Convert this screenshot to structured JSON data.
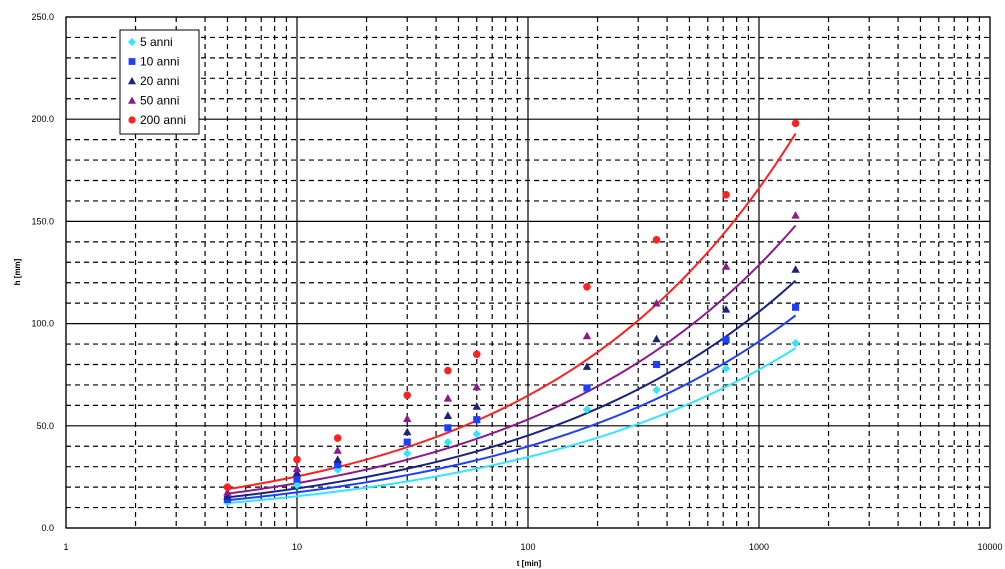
{
  "chart_data": {
    "type": "scatter",
    "title": "",
    "xlabel": "t [min]",
    "ylabel": "h [mm]",
    "xscale": "log",
    "xlim": [
      1,
      10000
    ],
    "ylim": [
      0,
      250
    ],
    "x_tick_labels": [
      "1",
      "10",
      "100",
      "1000",
      "10000"
    ],
    "y_tick_labels": [
      "0.0",
      "50.0",
      "100.0",
      "150.0",
      "200.0",
      "250.0"
    ],
    "grid": "major solid, minor dashed",
    "legend_position": "top-left",
    "x": [
      5,
      10,
      15,
      30,
      45,
      60,
      180,
      360,
      720,
      1440
    ],
    "series": [
      {
        "name": "5 anni",
        "marker": "diamond",
        "color": "#33e5ff",
        "values": [
          12.5,
          21,
          28.5,
          36.5,
          42,
          46,
          58,
          67.5,
          78,
          90.5
        ],
        "trend": [
          [
            5,
            12.2
          ],
          [
            1440,
            88
          ]
        ]
      },
      {
        "name": "10 anni",
        "marker": "square",
        "color": "#1f3fff",
        "values": [
          14,
          24,
          31,
          42,
          49,
          53,
          68.5,
          80,
          92,
          108
        ],
        "trend": [
          [
            5,
            13.6
          ],
          [
            1440,
            104
          ]
        ]
      },
      {
        "name": "20 anni",
        "marker": "triangle",
        "color": "#1a237e",
        "values": [
          15.5,
          27,
          33.5,
          47,
          55,
          59.5,
          79,
          92.5,
          107,
          126.5
        ],
        "trend": [
          [
            5,
            15
          ],
          [
            1440,
            121
          ]
        ]
      },
      {
        "name": "50 anni",
        "marker": "triangle",
        "color": "#8b1a8b",
        "values": [
          17.5,
          29,
          38,
          53.5,
          63.5,
          69,
          94,
          110,
          128,
          153
        ],
        "trend": [
          [
            5,
            16.8
          ],
          [
            1440,
            148
          ]
        ]
      },
      {
        "name": "200 anni",
        "marker": "circle",
        "color": "#ff2020",
        "values": [
          20,
          33.5,
          44,
          65,
          77,
          85,
          118,
          141,
          163,
          198
        ],
        "trend": [
          [
            5,
            19
          ],
          [
            1440,
            193
          ]
        ]
      }
    ]
  },
  "colors": {
    "grid": "#000000",
    "background": "#ffffff"
  }
}
